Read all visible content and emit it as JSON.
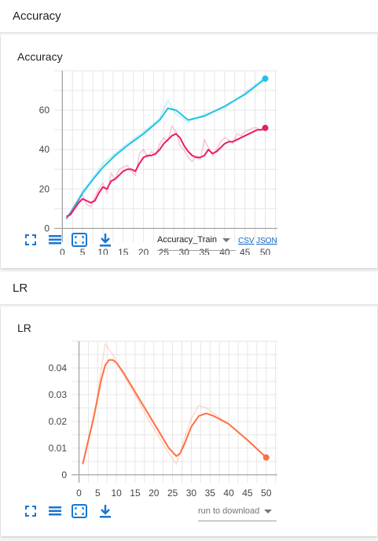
{
  "sections": [
    {
      "header": "Accuracy",
      "card_title": "Accuracy"
    },
    {
      "header": "LR",
      "card_title": "LR"
    }
  ],
  "toolbar": {
    "icons": [
      "fullscreen-icon",
      "list-icon",
      "fit-domain-icon",
      "download-icon"
    ]
  },
  "accuracy_controls": {
    "dropdown_value": "Accuracy_Train",
    "csv_label": "CSV",
    "json_label": "JSON"
  },
  "lr_controls": {
    "dropdown_value": "run to download"
  },
  "chart_data": [
    {
      "type": "line",
      "title": "Accuracy",
      "xlim": [
        -2,
        53
      ],
      "ylim": [
        -7,
        80
      ],
      "xticks": [
        0,
        5,
        10,
        15,
        20,
        25,
        30,
        35,
        40,
        45,
        50
      ],
      "yticks": [
        0,
        20,
        40,
        60
      ],
      "colors": {
        "series1": "#1ec3e6",
        "series2": "#e91e63"
      },
      "series": [
        {
          "x": [
            1,
            3,
            5,
            8,
            10,
            13,
            16,
            20,
            24,
            26,
            28,
            31,
            35,
            40,
            45,
            50
          ],
          "y": [
            5,
            11,
            18,
            26,
            31,
            37,
            42,
            48,
            55,
            61,
            60,
            55,
            57,
            62,
            68,
            76
          ],
          "raw": [
            4,
            12,
            19,
            27,
            33,
            38,
            43,
            49,
            56,
            65,
            58,
            54,
            58,
            61,
            69,
            77
          ]
        },
        {
          "x": [
            1,
            2,
            3,
            4,
            5,
            6,
            7,
            8,
            9,
            10,
            11,
            12,
            13,
            14,
            15,
            16,
            17,
            18,
            19,
            20,
            21,
            22,
            23,
            24,
            25,
            26,
            27,
            28,
            29,
            30,
            31,
            32,
            33,
            34,
            35,
            36,
            37,
            38,
            39,
            40,
            41,
            42,
            43,
            44,
            45,
            46,
            47,
            48,
            49,
            50
          ],
          "y": [
            6,
            7,
            10,
            13,
            15,
            14,
            13,
            14,
            18,
            21,
            20,
            24,
            25,
            27,
            29,
            30,
            30,
            29,
            33,
            36,
            37,
            37,
            38,
            40,
            43,
            45,
            47,
            48,
            46,
            42,
            39,
            37,
            36,
            36,
            37,
            40,
            38,
            39,
            41,
            43,
            44,
            44,
            45,
            46,
            47,
            48,
            49,
            50,
            50,
            51
          ],
          "raw": [
            5,
            8,
            12,
            14,
            17,
            12,
            11,
            16,
            20,
            23,
            18,
            28,
            25,
            30,
            31,
            32,
            29,
            27,
            38,
            40,
            36,
            39,
            37,
            43,
            46,
            44,
            52,
            49,
            42,
            40,
            36,
            34,
            37,
            35,
            45,
            41,
            37,
            40,
            44,
            46,
            45,
            43,
            48,
            47,
            49,
            50,
            51,
            51,
            50,
            52
          ]
        }
      ]
    },
    {
      "type": "line",
      "title": "LR",
      "xlim": [
        -2,
        53
      ],
      "ylim": [
        -0.003,
        0.05
      ],
      "xticks": [
        0,
        5,
        10,
        15,
        20,
        25,
        30,
        35,
        40,
        45,
        50
      ],
      "yticks": [
        0,
        0.01,
        0.02,
        0.03,
        0.04
      ],
      "colors": {
        "series1": "#ff7043"
      },
      "series": [
        {
          "x": [
            1,
            4,
            6,
            7,
            8,
            9,
            10,
            12,
            15,
            18,
            21,
            24,
            26,
            27,
            28,
            30,
            32,
            34,
            36,
            40,
            45,
            50
          ],
          "y": [
            0.004,
            0.022,
            0.036,
            0.041,
            0.043,
            0.043,
            0.042,
            0.038,
            0.031,
            0.024,
            0.017,
            0.01,
            0.007,
            0.008,
            0.011,
            0.018,
            0.022,
            0.023,
            0.022,
            0.019,
            0.013,
            0.0065
          ],
          "raw": [
            0.004,
            0.021,
            0.04,
            0.049,
            0.047,
            0.045,
            0.042,
            0.037,
            0.03,
            0.022,
            0.015,
            0.008,
            0.004,
            0.008,
            0.013,
            0.021,
            0.026,
            0.025,
            0.023,
            0.019,
            0.013,
            0.0065
          ]
        }
      ]
    }
  ]
}
